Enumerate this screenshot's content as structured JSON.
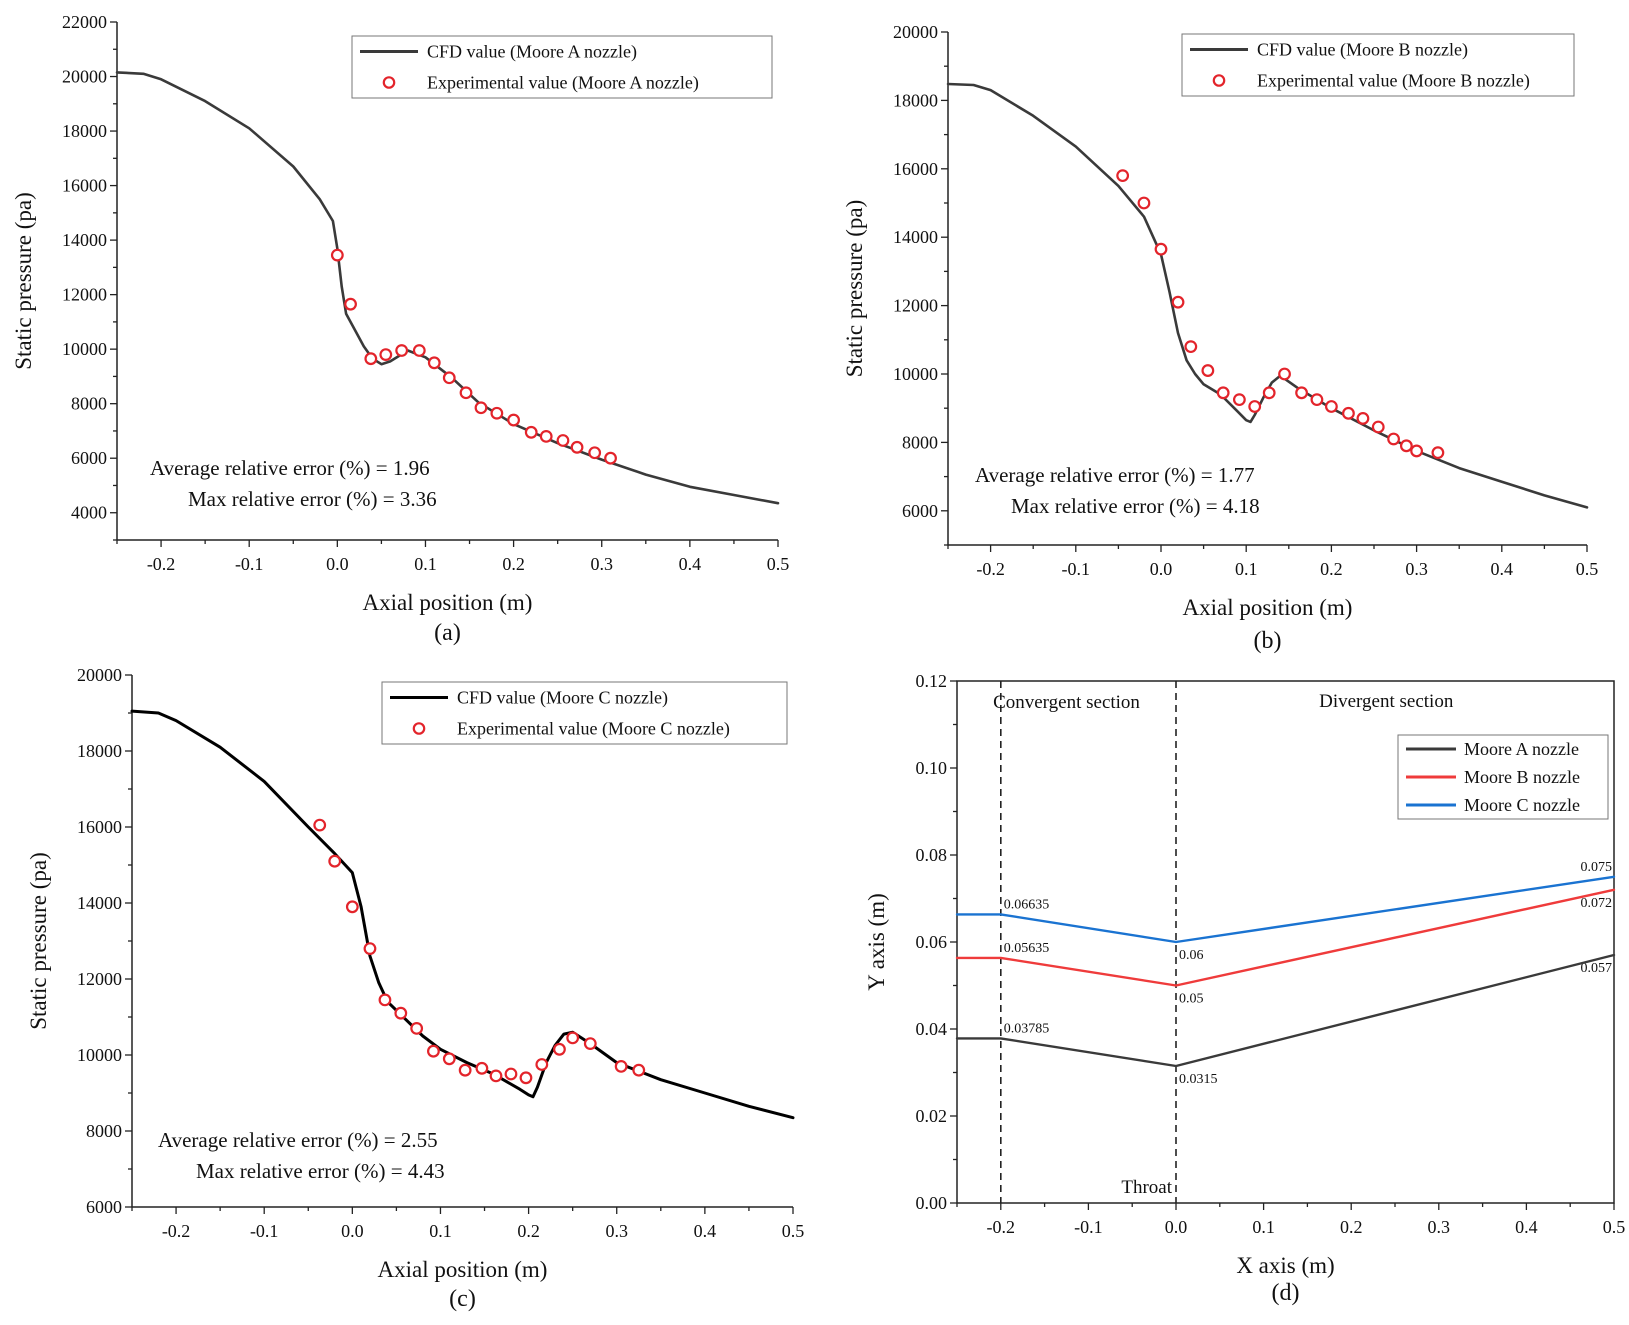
{
  "chart_data": [
    {
      "id": "a",
      "type": "line",
      "panel_label": "(a)",
      "xlabel": "Axial position (m)",
      "ylabel": "Static pressure (pa)",
      "xlim": [
        -0.25,
        0.5
      ],
      "ylim": [
        3000,
        22000
      ],
      "xticks": [
        -0.2,
        -0.1,
        0.0,
        0.1,
        0.2,
        0.3,
        0.4,
        0.5
      ],
      "xtick_labels": [
        "-0.2",
        "-0.1",
        "0.0",
        "0.1",
        "0.2",
        "0.3",
        "0.4",
        "0.5"
      ],
      "yticks": [
        4000,
        6000,
        8000,
        10000,
        12000,
        14000,
        16000,
        18000,
        20000,
        22000
      ],
      "ytick_labels": [
        "4000",
        "6000",
        "8000",
        "10000",
        "12000",
        "14000",
        "16000",
        "18000",
        "20000",
        "22000"
      ],
      "legend_position": "top-right",
      "series": [
        {
          "name": "CFD value (Moore A nozzle)",
          "kind": "line",
          "color": "#3a3a3a",
          "x": [
            -0.25,
            -0.22,
            -0.2,
            -0.15,
            -0.1,
            -0.05,
            -0.02,
            -0.005,
            0.0,
            0.005,
            0.01,
            0.02,
            0.03,
            0.04,
            0.05,
            0.06,
            0.08,
            0.1,
            0.13,
            0.16,
            0.2,
            0.25,
            0.3,
            0.35,
            0.4,
            0.45,
            0.5
          ],
          "y": [
            20150,
            20100,
            19900,
            19100,
            18100,
            16700,
            15500,
            14700,
            13700,
            12300,
            11300,
            10700,
            10100,
            9650,
            9450,
            9550,
            9950,
            9700,
            8950,
            8050,
            7250,
            6550,
            5950,
            5400,
            4950,
            4650,
            4350
          ]
        },
        {
          "name": "Experimental value (Moore A nozzle)",
          "kind": "scatter",
          "color": "#e3242b",
          "x": [
            0.0,
            0.015,
            0.038,
            0.055,
            0.073,
            0.093,
            0.11,
            0.127,
            0.146,
            0.163,
            0.181,
            0.2,
            0.22,
            0.237,
            0.256,
            0.272,
            0.292,
            0.31
          ],
          "y": [
            13450,
            11650,
            9650,
            9800,
            9950,
            9950,
            9500,
            8950,
            8400,
            7850,
            7650,
            7400,
            6950,
            6800,
            6650,
            6400,
            6200,
            6000
          ]
        }
      ],
      "annotations": [
        "Average relative error (%) = 1.96",
        "Max relative error (%) =  3.36"
      ]
    },
    {
      "id": "b",
      "type": "line",
      "panel_label": "(b)",
      "xlabel": "Axial position (m)",
      "ylabel": "Static pressure (pa)",
      "xlim": [
        -0.25,
        0.5
      ],
      "ylim": [
        5000,
        20000
      ],
      "xticks": [
        -0.2,
        -0.1,
        0.0,
        0.1,
        0.2,
        0.3,
        0.4,
        0.5
      ],
      "xtick_labels": [
        "-0.2",
        "-0.1",
        "0.0",
        "0.1",
        "0.2",
        "0.3",
        "0.4",
        "0.5"
      ],
      "yticks": [
        6000,
        8000,
        10000,
        12000,
        14000,
        16000,
        18000,
        20000
      ],
      "ytick_labels": [
        "6000",
        "8000",
        "10000",
        "12000",
        "14000",
        "16000",
        "18000",
        "20000"
      ],
      "legend_position": "top-right",
      "series": [
        {
          "name": "CFD value (Moore B nozzle)",
          "kind": "line",
          "color": "#3a3a3a",
          "x": [
            -0.25,
            -0.22,
            -0.2,
            -0.15,
            -0.1,
            -0.05,
            -0.02,
            0.0,
            0.01,
            0.02,
            0.03,
            0.04,
            0.05,
            0.07,
            0.09,
            0.1,
            0.105,
            0.11,
            0.12,
            0.13,
            0.14,
            0.16,
            0.2,
            0.25,
            0.3,
            0.35,
            0.4,
            0.45,
            0.5
          ],
          "y": [
            18480,
            18450,
            18300,
            17550,
            16650,
            15500,
            14600,
            13500,
            12400,
            11200,
            10400,
            10000,
            9700,
            9400,
            8900,
            8650,
            8600,
            8800,
            9300,
            9750,
            9950,
            9600,
            9000,
            8350,
            7750,
            7250,
            6850,
            6450,
            6100
          ]
        },
        {
          "name": "Experimental value (Moore B nozzle)",
          "kind": "scatter",
          "color": "#e3242b",
          "x": [
            -0.045,
            -0.02,
            0.0,
            0.02,
            0.035,
            0.055,
            0.073,
            0.092,
            0.11,
            0.127,
            0.145,
            0.165,
            0.183,
            0.2,
            0.22,
            0.237,
            0.255,
            0.273,
            0.288,
            0.3,
            0.325
          ],
          "y": [
            15800,
            15000,
            13650,
            12100,
            10800,
            10100,
            9450,
            9250,
            9050,
            9450,
            10000,
            9450,
            9250,
            9050,
            8850,
            8700,
            8450,
            8100,
            7900,
            7750,
            7700
          ]
        }
      ],
      "annotations": [
        "Average relative error (%) = 1.77",
        "Max relative error (%) = 4.18"
      ]
    },
    {
      "id": "c",
      "type": "line",
      "panel_label": "(c)",
      "xlabel": "Axial position (m)",
      "ylabel": "Static pressure (pa)",
      "xlim": [
        -0.25,
        0.5
      ],
      "ylim": [
        6000,
        20000
      ],
      "xticks": [
        -0.2,
        -0.1,
        0.0,
        0.1,
        0.2,
        0.3,
        0.4,
        0.5
      ],
      "xtick_labels": [
        "-0.2",
        "-0.1",
        "0.0",
        "0.1",
        "0.2",
        "0.3",
        "0.4",
        "0.5"
      ],
      "yticks": [
        6000,
        8000,
        10000,
        12000,
        14000,
        16000,
        18000,
        20000
      ],
      "ytick_labels": [
        "6000",
        "8000",
        "10000",
        "12000",
        "14000",
        "16000",
        "18000",
        "20000"
      ],
      "legend_position": "top-right",
      "series": [
        {
          "name": "CFD value (Moore C nozzle)",
          "kind": "line",
          "color": "#000000",
          "x": [
            -0.25,
            -0.22,
            -0.2,
            -0.15,
            -0.1,
            -0.05,
            -0.02,
            0.0,
            0.01,
            0.02,
            0.03,
            0.04,
            0.06,
            0.08,
            0.1,
            0.13,
            0.16,
            0.19,
            0.2,
            0.205,
            0.21,
            0.22,
            0.23,
            0.24,
            0.25,
            0.27,
            0.3,
            0.35,
            0.4,
            0.45,
            0.5
          ],
          "y": [
            19050,
            19000,
            18800,
            18100,
            17200,
            16000,
            15300,
            14800,
            13900,
            12600,
            11900,
            11400,
            10950,
            10500,
            10150,
            9800,
            9500,
            9100,
            8950,
            8900,
            9150,
            9800,
            10250,
            10550,
            10600,
            10300,
            9800,
            9350,
            9000,
            8650,
            8350
          ]
        },
        {
          "name": "Experimental value (Moore C nozzle)",
          "kind": "scatter",
          "color": "#e3242b",
          "x": [
            -0.037,
            -0.02,
            0.0,
            0.02,
            0.037,
            0.055,
            0.073,
            0.092,
            0.11,
            0.128,
            0.147,
            0.163,
            0.18,
            0.197,
            0.215,
            0.235,
            0.25,
            0.27,
            0.305,
            0.325
          ],
          "y": [
            16050,
            15100,
            13900,
            12800,
            11450,
            11100,
            10700,
            10100,
            9900,
            9600,
            9650,
            9450,
            9500,
            9400,
            9750,
            10150,
            10450,
            10300,
            9700,
            9600
          ]
        }
      ],
      "annotations": [
        "Average relative error (%) = 2.55",
        "Max relative error (%) = 4.43"
      ]
    },
    {
      "id": "d",
      "type": "line",
      "panel_label": "(d)",
      "xlabel": "X axis (m)",
      "ylabel": "Y axis (m)",
      "xlim": [
        -0.25,
        0.5
      ],
      "ylim": [
        0.0,
        0.12
      ],
      "xticks": [
        -0.2,
        -0.1,
        0.0,
        0.1,
        0.2,
        0.3,
        0.4,
        0.5
      ],
      "xtick_labels": [
        "-0.2",
        "-0.1",
        "0.0",
        "0.1",
        "0.2",
        "0.3",
        "0.4",
        "0.5"
      ],
      "yticks": [
        0.0,
        0.02,
        0.04,
        0.06,
        0.08,
        0.1,
        0.12
      ],
      "ytick_labels": [
        "0.00",
        "0.02",
        "0.04",
        "0.06",
        "0.08",
        "0.10",
        "0.12"
      ],
      "legend_position": "right",
      "series": [
        {
          "name": "Moore A nozzle",
          "kind": "line",
          "color": "#3a3a3a",
          "x": [
            -0.25,
            -0.2,
            0.0,
            0.5
          ],
          "y": [
            0.03785,
            0.03785,
            0.0315,
            0.057
          ]
        },
        {
          "name": "Moore B nozzle",
          "kind": "line",
          "color": "#ef3b3b",
          "x": [
            -0.25,
            -0.2,
            0.0,
            0.5
          ],
          "y": [
            0.05635,
            0.05635,
            0.05,
            0.072
          ]
        },
        {
          "name": "Moore C nozzle",
          "kind": "line",
          "color": "#1a73d1",
          "x": [
            -0.25,
            -0.2,
            0.0,
            0.5
          ],
          "y": [
            0.06635,
            0.06635,
            0.06,
            0.075
          ]
        }
      ],
      "vlines": [
        -0.2,
        0.0
      ],
      "section_labels": [
        "Convergent section",
        "Divergent section"
      ],
      "throat_label": "Throat",
      "point_labels": [
        {
          "text": "0.06635",
          "x": -0.2,
          "y": 0.06635,
          "align": "start",
          "pos": "above"
        },
        {
          "text": "0.05635",
          "x": -0.2,
          "y": 0.05635,
          "align": "start",
          "pos": "above"
        },
        {
          "text": "0.03785",
          "x": -0.2,
          "y": 0.03785,
          "align": "start",
          "pos": "above"
        },
        {
          "text": "0.06",
          "x": 0.0,
          "y": 0.06,
          "align": "start",
          "pos": "below"
        },
        {
          "text": "0.05",
          "x": 0.0,
          "y": 0.05,
          "align": "start",
          "pos": "below"
        },
        {
          "text": "0.0315",
          "x": 0.0,
          "y": 0.0315,
          "align": "start",
          "pos": "below"
        },
        {
          "text": "0.075",
          "x": 0.5,
          "y": 0.075,
          "align": "end",
          "pos": "above"
        },
        {
          "text": "0.072",
          "x": 0.5,
          "y": 0.072,
          "align": "end",
          "pos": "below"
        },
        {
          "text": "0.057",
          "x": 0.5,
          "y": 0.057,
          "align": "end",
          "pos": "below"
        }
      ]
    }
  ]
}
